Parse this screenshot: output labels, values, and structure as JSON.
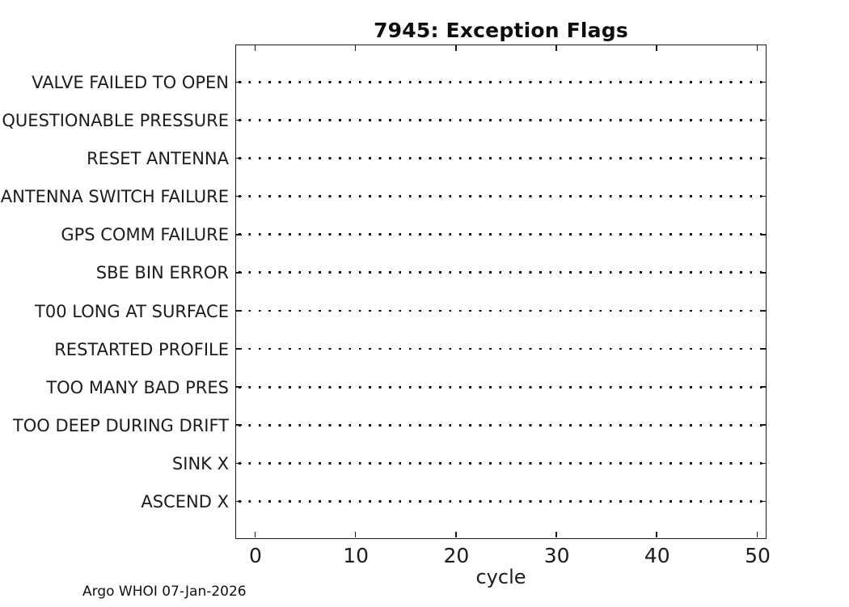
{
  "figure": {
    "footer": "Argo WHOI 07-Jan-2026"
  },
  "chart_data": {
    "type": "scatter",
    "title": "7945: Exception Flags",
    "xlabel": "cycle",
    "ylabel": "",
    "categories": [
      "VALVE FAILED TO OPEN",
      "QUESTIONABLE PRESSURE",
      "RESET ANTENNA",
      "ANTENNA SWITCH FAILURE",
      "GPS COMM FAILURE",
      "SBE BIN ERROR",
      "T00 LONG AT SURFACE",
      "RESTARTED PROFILE",
      "TOO MANY BAD PRES",
      "TOO DEEP DURING DRIFT",
      "SINK X",
      "ASCEND X"
    ],
    "x_ticks": [
      0,
      10,
      20,
      30,
      40,
      50
    ],
    "xlim": [
      -2,
      51
    ],
    "points": [],
    "grid": "dotted horizontal line per category",
    "legend": "none",
    "colors": {
      "axis": "#1a1a1a",
      "text": "#1c1c1c",
      "background": "#ffffff"
    }
  }
}
